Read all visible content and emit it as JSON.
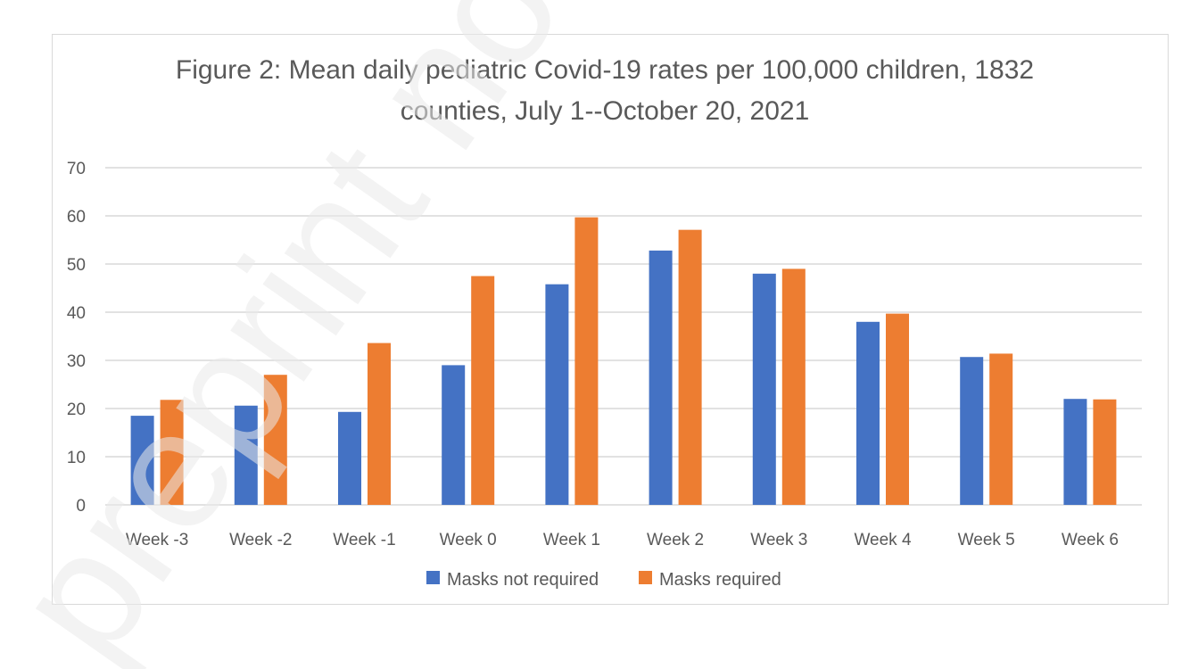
{
  "chart_data": {
    "type": "bar",
    "title_line1": "Figure 2: Mean daily pediatric Covid-19 rates per 100,000 children, 1832",
    "title_line2": "counties, July 1--October 20, 2021",
    "xlabel": "",
    "ylabel": "",
    "ylim": [
      0,
      70
    ],
    "yticks": [
      0,
      10,
      20,
      30,
      40,
      50,
      60,
      70
    ],
    "grid": true,
    "legend_position": "bottom",
    "categories": [
      "Week -3",
      "Week -2",
      "Week -1",
      "Week 0",
      "Week 1",
      "Week 2",
      "Week 3",
      "Week 4",
      "Week 5",
      "Week 6"
    ],
    "series": [
      {
        "name": "Masks not required",
        "color": "#4472c4",
        "values": [
          18.5,
          20.6,
          19.3,
          29.0,
          45.8,
          52.8,
          48.0,
          38.0,
          30.7,
          22.0
        ]
      },
      {
        "name": "Masks required",
        "color": "#ed7d31",
        "values": [
          21.8,
          27.0,
          33.6,
          47.5,
          59.7,
          57.1,
          49.0,
          39.7,
          31.4,
          21.9
        ]
      }
    ]
  },
  "watermark": {
    "text": "preprint not peer reviewed",
    "color": "#e9e9e9"
  }
}
